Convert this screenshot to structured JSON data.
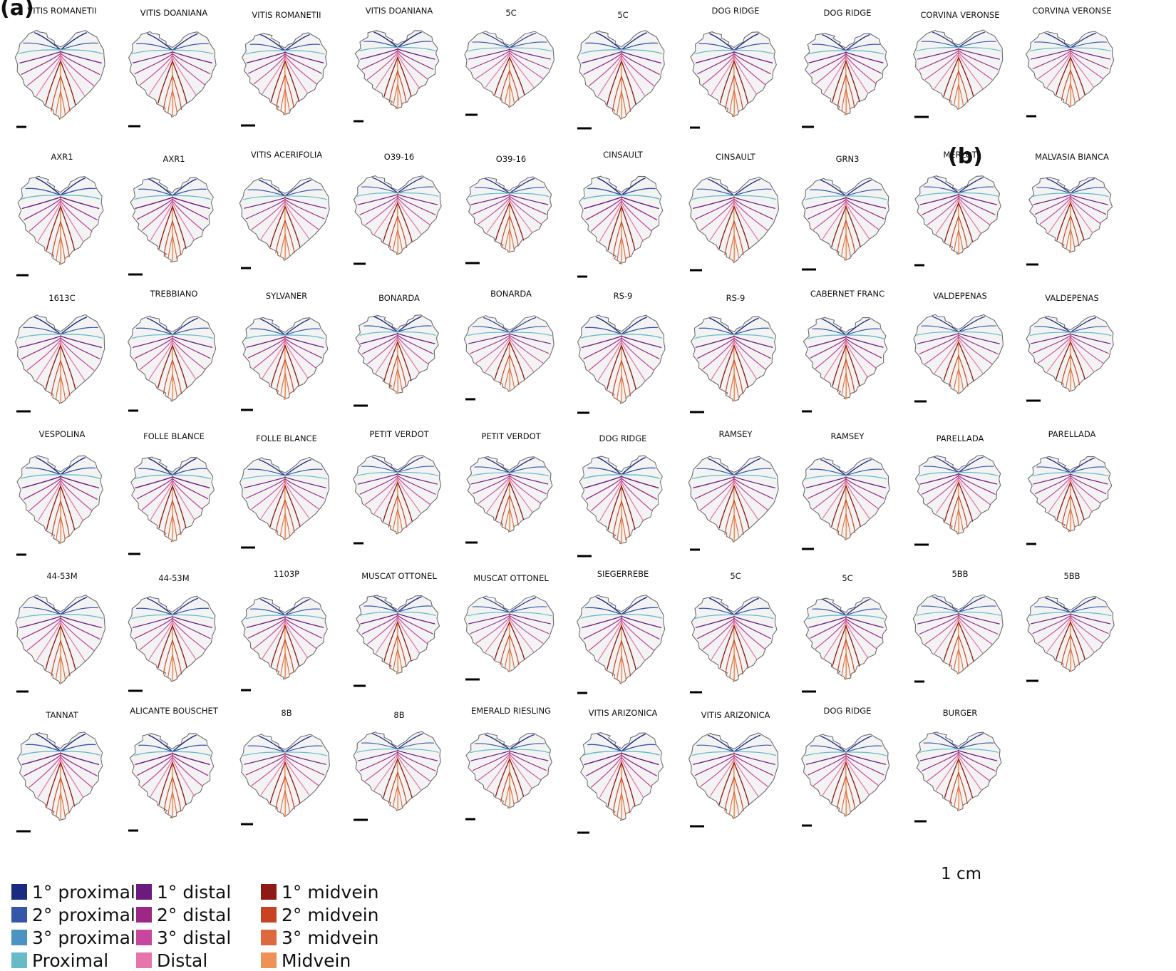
{
  "panels": {
    "a": "(a)",
    "b": "(b)"
  },
  "colors": {
    "prox1": "#1a2a80",
    "prox2": "#3557a8",
    "prox3": "#4b93c3",
    "proximal": "#66bbc6",
    "dist1": "#6b1a7e",
    "dist2": "#9b2786",
    "dist3": "#c8479e",
    "distal": "#e675ab",
    "mid1": "#8e1a16",
    "mid2": "#c84321",
    "mid3": "#dd6a3e",
    "midvein": "#f09257",
    "outline": "#6a6a6a",
    "fill": "#f3f3f3"
  },
  "legend": [
    {
      "label": "1° proximal",
      "color": "#1a2a80"
    },
    {
      "label": "2° proximal",
      "color": "#3557a8"
    },
    {
      "label": "3° proximal",
      "color": "#4b93c3"
    },
    {
      "label": "Proximal",
      "color": "#66bbc6"
    },
    {
      "label": "1° distal",
      "color": "#6b1a7e"
    },
    {
      "label": "2° distal",
      "color": "#9b2786"
    },
    {
      "label": "3° distal",
      "color": "#c8479e"
    },
    {
      "label": "Distal",
      "color": "#e675ab"
    },
    {
      "label": "1° midvein",
      "color": "#8e1a16"
    },
    {
      "label": "2° midvein",
      "color": "#c84321"
    },
    {
      "label": "3° midvein",
      "color": "#dd6a3e"
    },
    {
      "label": "Midvein",
      "color": "#f09257"
    }
  ],
  "scale_bar_label": "1 cm",
  "rows": [
    [
      "VITIS ROMANETII",
      "VITIS DOANIANA",
      "VITIS ROMANETII",
      "VITIS DOANIANA",
      "5C",
      "5C",
      "DOG RIDGE",
      "DOG RIDGE",
      "CORVINA VERONSE",
      "CORVINA VERONSE"
    ],
    [
      "AXR1",
      "AXR1",
      "VITIS ACERIFOLIA",
      "O39-16",
      "O39-16",
      "CINSAULT",
      "CINSAULT",
      "GRN3",
      "MERLOT",
      "MALVASIA BIANCA"
    ],
    [
      "1613C",
      "TREBBIANO",
      "SYLVANER",
      "BONARDA",
      "BONARDA",
      "RS-9",
      "RS-9",
      "CABERNET FRANC",
      "VALDEPENAS",
      "VALDEPENAS"
    ],
    [
      "VESPOLINA",
      "FOLLE BLANCE",
      "FOLLE BLANCE",
      "PETIT VERDOT",
      "PETIT VERDOT",
      "DOG RIDGE",
      "RAMSEY",
      "RAMSEY",
      "PARELLADA",
      "PARELLADA"
    ],
    [
      "44-53M",
      "44-53M",
      "1103P",
      "MUSCAT OTTONEL",
      "MUSCAT OTTONEL",
      "SIEGERREBE",
      "5C",
      "5C",
      "5BB",
      "5BB"
    ],
    [
      "TANNAT",
      "ALICANTE BOUSCHET",
      "8B",
      "8B",
      "EMERALD RIESLING",
      "VITIS ARIZONICA",
      "VITIS ARIZONICA",
      "DOG RIDGE",
      "BURGER"
    ]
  ]
}
